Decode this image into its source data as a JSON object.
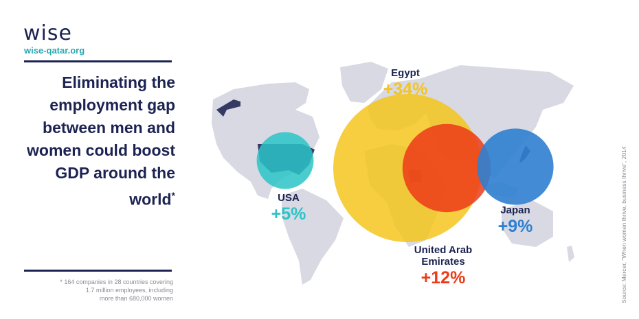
{
  "brand": {
    "logo": "wise",
    "site": "wise-qatar.org"
  },
  "headline": {
    "text": "Eliminating the employment gap between men and women could boost GDP around the world",
    "asterisk": "*"
  },
  "footnote": "* 164 companies in 28 countries covering\n1.7 million employees, including\nmore than 680,000 women",
  "source": "Source: Mercer, \"When women thrive, business thrive\", 2014",
  "colors": {
    "navy": "#1c2352",
    "teal": "#2bc4c7",
    "yellow": "#f4c51d",
    "red": "#ec3b17",
    "blue": "#2f7fd0",
    "land": "#d8d9e2"
  },
  "chart_data": {
    "type": "bubble-map",
    "unit": "% GDP boost",
    "regions": [
      {
        "name": "USA",
        "value": 5,
        "label": "+5%",
        "color": "#2bc4c7"
      },
      {
        "name": "Egypt",
        "value": 34,
        "label": "+34%",
        "color": "#f4c51d"
      },
      {
        "name": "United Arab Emirates",
        "value": 12,
        "label": "+12%",
        "color": "#ec3b17"
      },
      {
        "name": "Japan",
        "value": 9,
        "label": "+9%",
        "color": "#2f7fd0"
      }
    ]
  },
  "labels": {
    "usa": {
      "name": "USA",
      "pct": "+5%"
    },
    "egypt": {
      "name": "Egypt",
      "pct": "+34%"
    },
    "uae": {
      "name_line1": "United Arab",
      "name_line2": "Emirates",
      "pct": "+12%"
    },
    "japan": {
      "name": "Japan",
      "pct": "+9%"
    }
  }
}
